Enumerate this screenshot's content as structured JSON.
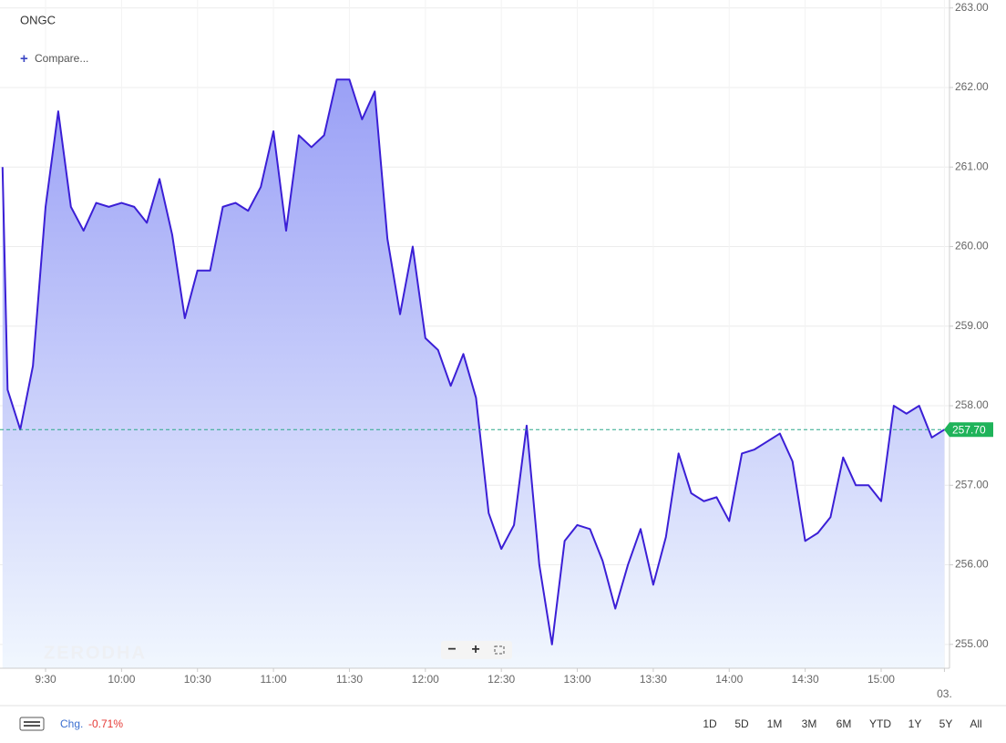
{
  "chart_data": {
    "type": "area",
    "title": "ONGC",
    "compare_button": "Compare...",
    "watermark": "ZERODHA",
    "series": [
      {
        "name": "ONGC",
        "color": "#3b1fd6",
        "x": [
          553,
          555,
          560,
          565,
          570,
          575,
          580,
          585,
          590,
          595,
          600,
          605,
          610,
          615,
          620,
          625,
          630,
          635,
          640,
          645,
          650,
          655,
          660,
          665,
          670,
          675,
          680,
          685,
          690,
          695,
          700,
          705,
          710,
          715,
          720,
          725,
          730,
          735,
          740,
          745,
          750,
          755,
          760,
          765,
          770,
          775,
          780,
          785,
          790,
          795,
          800,
          805,
          810,
          815,
          820,
          825,
          830,
          835,
          840,
          845,
          850,
          855,
          860,
          865,
          870,
          875,
          880,
          885,
          890,
          895,
          900,
          905,
          910,
          915,
          920,
          925
        ],
        "values": [
          261.0,
          258.2,
          257.7,
          258.5,
          260.5,
          261.7,
          260.5,
          260.2,
          260.55,
          260.5,
          260.55,
          260.5,
          260.3,
          260.85,
          260.15,
          259.1,
          259.7,
          259.7,
          260.5,
          260.55,
          260.45,
          260.75,
          261.45,
          260.2,
          261.4,
          261.25,
          261.4,
          262.1,
          262.1,
          261.6,
          261.95,
          260.1,
          259.15,
          260.0,
          258.85,
          258.7,
          258.25,
          258.65,
          258.1,
          256.65,
          256.2,
          256.5,
          257.75,
          256.0,
          255.0,
          256.3,
          256.5,
          256.45,
          256.05,
          255.45,
          256.0,
          256.45,
          255.75,
          256.35,
          257.4,
          256.9,
          256.8,
          256.85,
          256.55,
          257.4,
          257.45,
          257.55,
          257.65,
          257.3,
          256.3,
          256.4,
          256.6,
          257.35,
          257.0,
          257.0,
          256.8,
          258.0,
          257.9,
          258.0,
          257.6,
          257.7
        ]
      }
    ],
    "last_price": {
      "value": 257.7,
      "label": "257.70",
      "color": "#1fb35a"
    },
    "xlim": [
      552,
      927
    ],
    "xticks": [
      {
        "value": 570,
        "label": "9:30"
      },
      {
        "value": 600,
        "label": "10:00"
      },
      {
        "value": 630,
        "label": "10:30"
      },
      {
        "value": 660,
        "label": "11:00"
      },
      {
        "value": 690,
        "label": "11:30"
      },
      {
        "value": 720,
        "label": "12:00"
      },
      {
        "value": 750,
        "label": "12:30"
      },
      {
        "value": 780,
        "label": "13:00"
      },
      {
        "value": 810,
        "label": "13:30"
      },
      {
        "value": 840,
        "label": "14:00"
      },
      {
        "value": 870,
        "label": "14:30"
      },
      {
        "value": 900,
        "label": "15:00"
      },
      {
        "value": 925,
        "label": "03."
      }
    ],
    "ylim": [
      254.7,
      263.1
    ],
    "yticks": [
      {
        "value": 255,
        "label": "255.00"
      },
      {
        "value": 256,
        "label": "256.00"
      },
      {
        "value": 257,
        "label": "257.00"
      },
      {
        "value": 258,
        "label": "258.00"
      },
      {
        "value": 259,
        "label": "259.00"
      },
      {
        "value": 260,
        "label": "260.00"
      },
      {
        "value": 261,
        "label": "261.00"
      },
      {
        "value": 262,
        "label": "262.00"
      },
      {
        "value": 263,
        "label": "263.00"
      }
    ],
    "grid": true,
    "change_label": "Chg.",
    "change_value": "-0.71%",
    "ranges": [
      "1D",
      "5D",
      "1M",
      "3M",
      "6M",
      "YTD",
      "1Y",
      "5Y",
      "All"
    ]
  }
}
